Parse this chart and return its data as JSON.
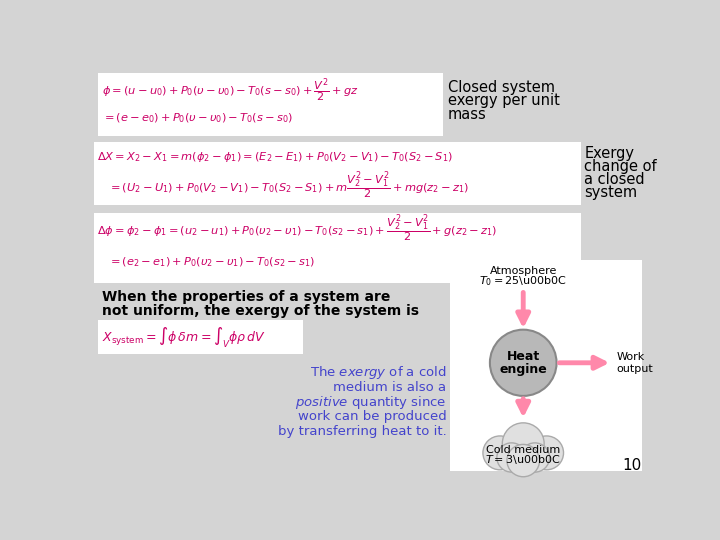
{
  "bg_color": "#d4d4d4",
  "eq_text_color": "#cc0066",
  "black_text": "#000000",
  "blue_text": "#4444cc",
  "arrow_color": "#ff88aa",
  "title1_line1": "Closed system",
  "title1_line2": "exergy per unit",
  "title1_line3": "mass",
  "label_exergy_line1": "Exergy",
  "label_exergy_line2": "change of",
  "label_exergy_line3": "a closed",
  "label_exergy_line4": "system",
  "when_text1": "When the properties of a system are",
  "when_text2": "not uniform, the exergy of the system is",
  "atm_text": "Atmosphere",
  "heat_engine_line1": "Heat",
  "heat_engine_line2": "engine",
  "work_line1": "Work",
  "work_line2": "output",
  "cold_medium": "Cold medium",
  "page_num": "10",
  "cold_lines": [
    "The exergy of a cold",
    "medium is also a",
    "positive quantity since",
    "work can be produced",
    "by transferring heat to it."
  ],
  "cold_italic_words": [
    "exergy",
    "positive"
  ]
}
